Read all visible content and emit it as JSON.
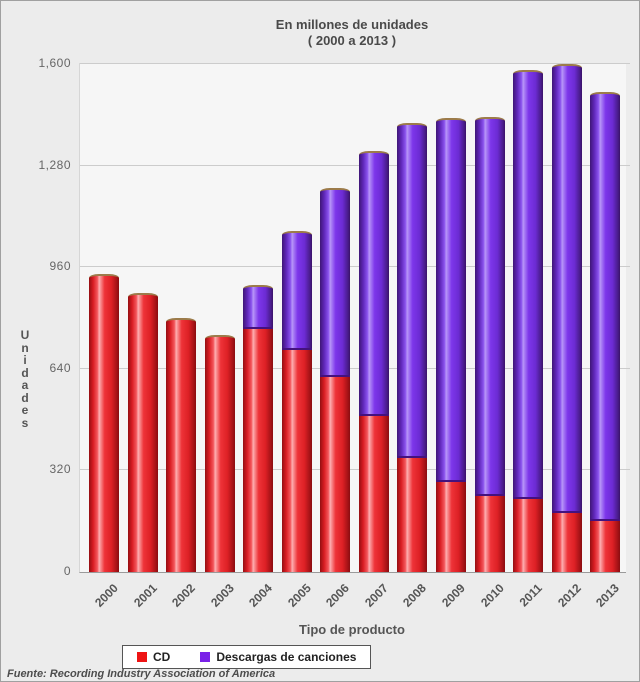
{
  "title": {
    "line1": "En millones de unidades",
    "line2": "( 2000  a  2013 )"
  },
  "y_axis": {
    "title": "Unidades",
    "tick_values": [
      0,
      320,
      640,
      960,
      1280,
      1600
    ],
    "tick_labels": [
      "0",
      "320",
      "640",
      "960",
      "1,280",
      "1,600"
    ]
  },
  "x_axis": {
    "title": "Tipo de producto"
  },
  "footer": "Fuente: Recording Industry Association of America",
  "colors": {
    "cd": "#ee1414",
    "descargas": "#7a22e8",
    "background": "#ececec",
    "plot_background": "#f6f6f6"
  },
  "chart_data": {
    "type": "bar",
    "stacked": true,
    "title": "En millones de unidades ( 2000 a 2013 )",
    "xlabel": "Tipo de producto",
    "ylabel": "Unidades",
    "ylim": [
      0,
      1600
    ],
    "grid": true,
    "legend_position": "bottom",
    "categories": [
      "2000",
      "2001",
      "2002",
      "2003",
      "2004",
      "2005",
      "2006",
      "2007",
      "2008",
      "2009",
      "2010",
      "2011",
      "2012",
      "2013"
    ],
    "series": [
      {
        "name": "CD",
        "color": "#ee1414",
        "values": [
          940,
          880,
          800,
          745,
          765,
          700,
          615,
          490,
          360,
          285,
          240,
          230,
          185,
          160
        ]
      },
      {
        "name": "Descargas de canciones",
        "color": "#7a22e8",
        "values": [
          0,
          0,
          0,
          0,
          140,
          375,
          595,
          835,
          1055,
          1145,
          1195,
          1350,
          1415,
          1350
        ]
      }
    ],
    "totals": [
      940,
      880,
      800,
      745,
      905,
      1075,
      1210,
      1325,
      1415,
      1430,
      1435,
      1580,
      1600,
      1510
    ],
    "source": "Fuente: Recording Industry Association of America"
  }
}
